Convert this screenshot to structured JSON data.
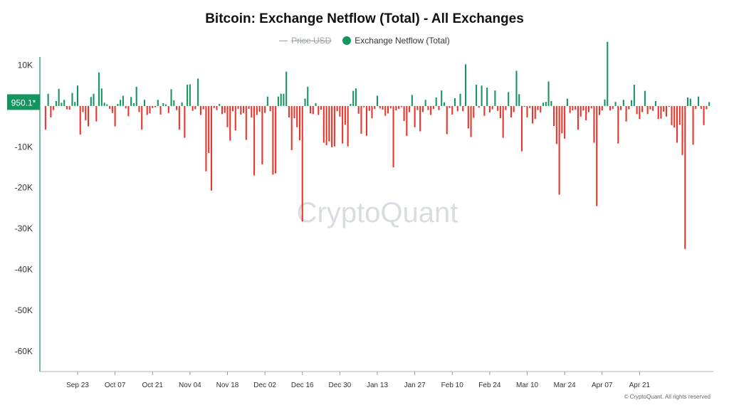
{
  "title": "Bitcoin: Exchange Netflow (Total) - All Exchanges",
  "legend": [
    {
      "label": "Price USD",
      "color": "#9aa0a6",
      "enabled": false
    },
    {
      "label": "Exchange Netflow (Total)",
      "color": "#149560",
      "enabled": true
    }
  ],
  "watermark": "CryptoQuant",
  "copyright": "CryptoQuant. All rights reserved",
  "current_value_label": "950.1*",
  "colors": {
    "positive": "#149560",
    "negative": "#e8352b",
    "axis": "#149560",
    "text": "#333333"
  },
  "chart_data": {
    "type": "bar",
    "title": "Bitcoin: Exchange Netflow (Total) - All Exchanges",
    "grid": false,
    "legend_position": "top-center",
    "ylim": [
      -65000,
      12000
    ],
    "y_ticks": [
      {
        "value": 10000,
        "label": "10K"
      },
      {
        "value": -10000,
        "label": "-10K"
      },
      {
        "value": -20000,
        "label": "-20K"
      },
      {
        "value": -30000,
        "label": "-30K"
      },
      {
        "value": -40000,
        "label": "-40K"
      },
      {
        "value": -50000,
        "label": "-50K"
      },
      {
        "value": -60000,
        "label": "-60K"
      }
    ],
    "x_ticks": [
      {
        "index": 12,
        "label": "Sep 23"
      },
      {
        "index": 26,
        "label": "Oct 07"
      },
      {
        "index": 40,
        "label": "Oct 21"
      },
      {
        "index": 54,
        "label": "Nov 04"
      },
      {
        "index": 68,
        "label": "Nov 18"
      },
      {
        "index": 82,
        "label": "Dec 02"
      },
      {
        "index": 96,
        "label": "Dec 16"
      },
      {
        "index": 110,
        "label": "Dec 30"
      },
      {
        "index": 124,
        "label": "Jan 13"
      },
      {
        "index": 138,
        "label": "Jan 27"
      },
      {
        "index": 152,
        "label": "Feb 10"
      },
      {
        "index": 166,
        "label": "Feb 24"
      },
      {
        "index": 180,
        "label": "Mar 10"
      },
      {
        "index": 194,
        "label": "Mar 24"
      },
      {
        "index": 208,
        "label": "Apr 07"
      },
      {
        "index": 222,
        "label": "Apr 21"
      }
    ],
    "series": [
      {
        "name": "Exchange Netflow (Total)",
        "values": [
          -5800,
          3000,
          -2800,
          -1000,
          1200,
          4200,
          800,
          1500,
          -800,
          -900,
          3200,
          1000,
          5000,
          -7000,
          -1500,
          -3500,
          -5000,
          2200,
          3000,
          -3800,
          8200,
          4300,
          800,
          400,
          -700,
          -1700,
          -5000,
          500,
          1500,
          2500,
          -600,
          -2500,
          2200,
          700,
          4700,
          -1500,
          -5800,
          1500,
          -2200,
          -1800,
          -500,
          -300,
          1500,
          -2100,
          700,
          400,
          -1700,
          4100,
          1400,
          -1000,
          -5800,
          900,
          -7800,
          5200,
          5300,
          -1200,
          -800,
          6700,
          -2200,
          -800,
          -16000,
          -11500,
          -20700,
          -500,
          -1000,
          500,
          -2000,
          -1700,
          -5200,
          -8500,
          -1300,
          -6000,
          -700,
          -2100,
          -1700,
          -8300,
          -700,
          -2800,
          -17000,
          -2200,
          -1400,
          -14300,
          -1700,
          2300,
          -1300,
          -16800,
          -16500,
          2300,
          3000,
          3000,
          8400,
          -2800,
          -10800,
          -3000,
          -5200,
          -8400,
          -28300,
          1800,
          4700,
          -1800
        ]
      }
    ]
  }
}
